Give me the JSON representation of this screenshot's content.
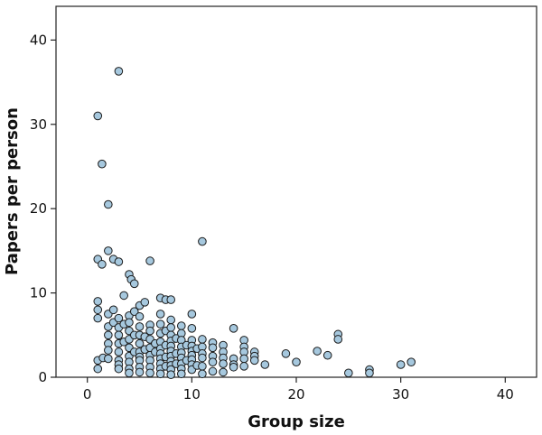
{
  "chart_data": {
    "type": "scatter",
    "title": "",
    "xlabel": "Group size",
    "ylabel": "Papers per person",
    "xlim": [
      -3,
      43
    ],
    "ylim": [
      0,
      44
    ],
    "xticks": [
      0,
      10,
      20,
      30,
      40
    ],
    "yticks": [
      0,
      10,
      20,
      30,
      40
    ],
    "grid": false,
    "colors": {
      "marker_fill": "#a6c8de",
      "marker_edge": "#1a1a1a"
    },
    "series": [
      {
        "points": [
          [
            1,
            31
          ],
          [
            1.4,
            25.3
          ],
          [
            2,
            20.5
          ],
          [
            3,
            36.3
          ],
          [
            1,
            14
          ],
          [
            1.4,
            13.4
          ],
          [
            2,
            15
          ],
          [
            2.5,
            14
          ],
          [
            3,
            13.7
          ],
          [
            6,
            13.8
          ],
          [
            11,
            16.1
          ],
          [
            4,
            12.2
          ],
          [
            4.2,
            11.6
          ],
          [
            4.5,
            11.1
          ],
          [
            1,
            9
          ],
          [
            1,
            8
          ],
          [
            1,
            7
          ],
          [
            2,
            7.5
          ],
          [
            2.5,
            8
          ],
          [
            3.5,
            9.7
          ],
          [
            4,
            7.3
          ],
          [
            4.5,
            7.8
          ],
          [
            5,
            8.5
          ],
          [
            5.5,
            8.9
          ],
          [
            7,
            9.4
          ],
          [
            7.5,
            9.2
          ],
          [
            8,
            9.2
          ],
          [
            10,
            7.5
          ],
          [
            1,
            2
          ],
          [
            1,
            1
          ],
          [
            1.5,
            2.3
          ],
          [
            2,
            6
          ],
          [
            2,
            5
          ],
          [
            2,
            4
          ],
          [
            2,
            3.2
          ],
          [
            2,
            2.2
          ],
          [
            2.5,
            6.5
          ],
          [
            3,
            7
          ],
          [
            3,
            5.9
          ],
          [
            3,
            5
          ],
          [
            3,
            4
          ],
          [
            3,
            3
          ],
          [
            3,
            2
          ],
          [
            3,
            1.5
          ],
          [
            3,
            1
          ],
          [
            3.5,
            6.3
          ],
          [
            3.5,
            4.2
          ],
          [
            4,
            6.5
          ],
          [
            4,
            5.5
          ],
          [
            4,
            4.5
          ],
          [
            4,
            3.5
          ],
          [
            4,
            2.5
          ],
          [
            4,
            1.8
          ],
          [
            4,
            1
          ],
          [
            4,
            0.5
          ],
          [
            4.5,
            5
          ],
          [
            4.5,
            3
          ],
          [
            5,
            7.2
          ],
          [
            5,
            6
          ],
          [
            5,
            5
          ],
          [
            5,
            4
          ],
          [
            5,
            3
          ],
          [
            5,
            2.4
          ],
          [
            5,
            2
          ],
          [
            5,
            1.2
          ],
          [
            5,
            0.6
          ],
          [
            5.5,
            4.8
          ],
          [
            5.5,
            3.3
          ],
          [
            6,
            6.2
          ],
          [
            6,
            5.5
          ],
          [
            6,
            4.5
          ],
          [
            6,
            3.5
          ],
          [
            6,
            2.6
          ],
          [
            6,
            2
          ],
          [
            6,
            1.2
          ],
          [
            6,
            0.5
          ],
          [
            6.5,
            3
          ],
          [
            6.5,
            4
          ],
          [
            7,
            7.5
          ],
          [
            7,
            6.3
          ],
          [
            7,
            5.2
          ],
          [
            7,
            4.2
          ],
          [
            7,
            3.4
          ],
          [
            7,
            2.8
          ],
          [
            7,
            2.2
          ],
          [
            7,
            1.6
          ],
          [
            7,
            1
          ],
          [
            7,
            0.4
          ],
          [
            7.5,
            5.5
          ],
          [
            7.5,
            3.8
          ],
          [
            7.5,
            2.4
          ],
          [
            7.5,
            1.3
          ],
          [
            8,
            6.8
          ],
          [
            8,
            5.9
          ],
          [
            8,
            5
          ],
          [
            8,
            4.3
          ],
          [
            8,
            3.7
          ],
          [
            8,
            3.1
          ],
          [
            8,
            2.5
          ],
          [
            8,
            1.9
          ],
          [
            8,
            1.4
          ],
          [
            8,
            0.9
          ],
          [
            8,
            0.3
          ],
          [
            8.5,
            4.6
          ],
          [
            8.5,
            2.8
          ],
          [
            8.5,
            1.6
          ],
          [
            9,
            6.1
          ],
          [
            9,
            5.2
          ],
          [
            9,
            4.4
          ],
          [
            9,
            3.6
          ],
          [
            9,
            2.9
          ],
          [
            9,
            2.3
          ],
          [
            9,
            1.6
          ],
          [
            9,
            1
          ],
          [
            9,
            0.4
          ],
          [
            9.5,
            3.8
          ],
          [
            9.5,
            2
          ],
          [
            10,
            5.8
          ],
          [
            10,
            4.4
          ],
          [
            10,
            3.7
          ],
          [
            10,
            3.1
          ],
          [
            10,
            2.6
          ],
          [
            10,
            2.1
          ],
          [
            10,
            1.5
          ],
          [
            10,
            0.9
          ],
          [
            10.5,
            3.4
          ],
          [
            10.5,
            1.4
          ],
          [
            11,
            4.5
          ],
          [
            11,
            3.6
          ],
          [
            11,
            2.8
          ],
          [
            11,
            2.3
          ],
          [
            11,
            1.3
          ],
          [
            11,
            0.4
          ],
          [
            12,
            4.1
          ],
          [
            12,
            3.5
          ],
          [
            12,
            2.5
          ],
          [
            12,
            1.8
          ],
          [
            12,
            0.7
          ],
          [
            13,
            3.8
          ],
          [
            13,
            3
          ],
          [
            13,
            2.3
          ],
          [
            13,
            1.6
          ],
          [
            13,
            0.6
          ],
          [
            14,
            5.8
          ],
          [
            14,
            2.2
          ],
          [
            14,
            1.5
          ],
          [
            14,
            1.2
          ],
          [
            15,
            4.4
          ],
          [
            15,
            3.6
          ],
          [
            15,
            3
          ],
          [
            15,
            2.2
          ],
          [
            15,
            1.3
          ],
          [
            16,
            3
          ],
          [
            16,
            2.5
          ],
          [
            16,
            2
          ],
          [
            17,
            1.5
          ],
          [
            19,
            2.8
          ],
          [
            20,
            1.8
          ],
          [
            22,
            3.1
          ],
          [
            23,
            2.6
          ],
          [
            24,
            5.1
          ],
          [
            24,
            4.5
          ],
          [
            25,
            0.5
          ],
          [
            27,
            0.9
          ],
          [
            27,
            0.5
          ],
          [
            30,
            1.5
          ],
          [
            31,
            1.8
          ]
        ]
      }
    ]
  }
}
